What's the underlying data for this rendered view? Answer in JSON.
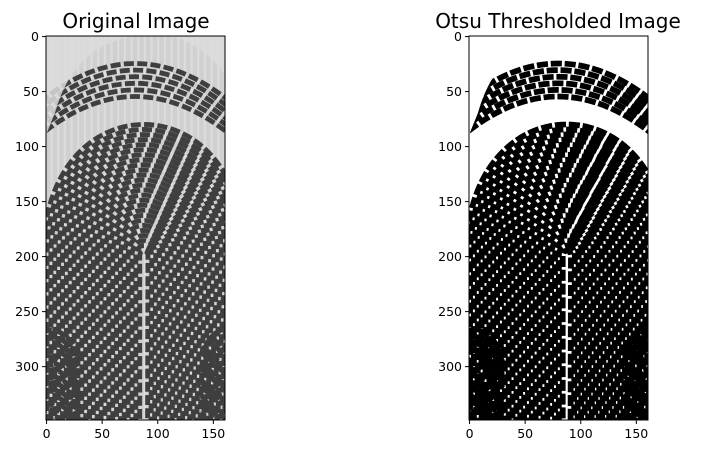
{
  "panels": [
    {
      "id": "original",
      "title": "Original Image",
      "style": "grayscale",
      "x_ticks": [
        "0",
        "50",
        "100",
        "150"
      ],
      "y_ticks": [
        "0",
        "50",
        "100",
        "150",
        "200",
        "250",
        "300"
      ],
      "image_width": 161,
      "image_height": 349
    },
    {
      "id": "otsu",
      "title": "Otsu Thresholded Image",
      "style": "binary",
      "x_ticks": [
        "0",
        "50",
        "100",
        "150"
      ],
      "y_ticks": [
        "0",
        "50",
        "100",
        "150",
        "200",
        "250",
        "300"
      ],
      "image_width": 161,
      "image_height": 349
    }
  ],
  "colors": {
    "original_background": "#dedede",
    "original_ridge": "#3c3c3c",
    "binary_background": "#ffffff",
    "binary_ridge": "#000000",
    "axis": "#000000"
  }
}
